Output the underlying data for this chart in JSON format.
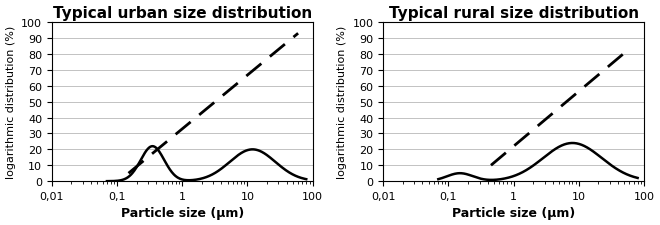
{
  "title_urban": "Typical urban size distribution",
  "title_rural": "Typical rural size distribution",
  "xlabel": "Particle size (μm)",
  "ylabel": "logarithmic distribution (%)",
  "xlim": [
    0.01,
    100
  ],
  "ylim": [
    0,
    100
  ],
  "yticks": [
    0,
    10,
    20,
    30,
    40,
    50,
    60,
    70,
    80,
    90,
    100
  ],
  "xticks": [
    0.01,
    0.1,
    1,
    10,
    100
  ],
  "xticklabels": [
    "0,01",
    "0,1",
    "1",
    "10",
    "100"
  ],
  "background_color": "#ffffff",
  "line_color": "#000000",
  "title_fontsize": 11,
  "label_fontsize": 9,
  "tick_fontsize": 8
}
